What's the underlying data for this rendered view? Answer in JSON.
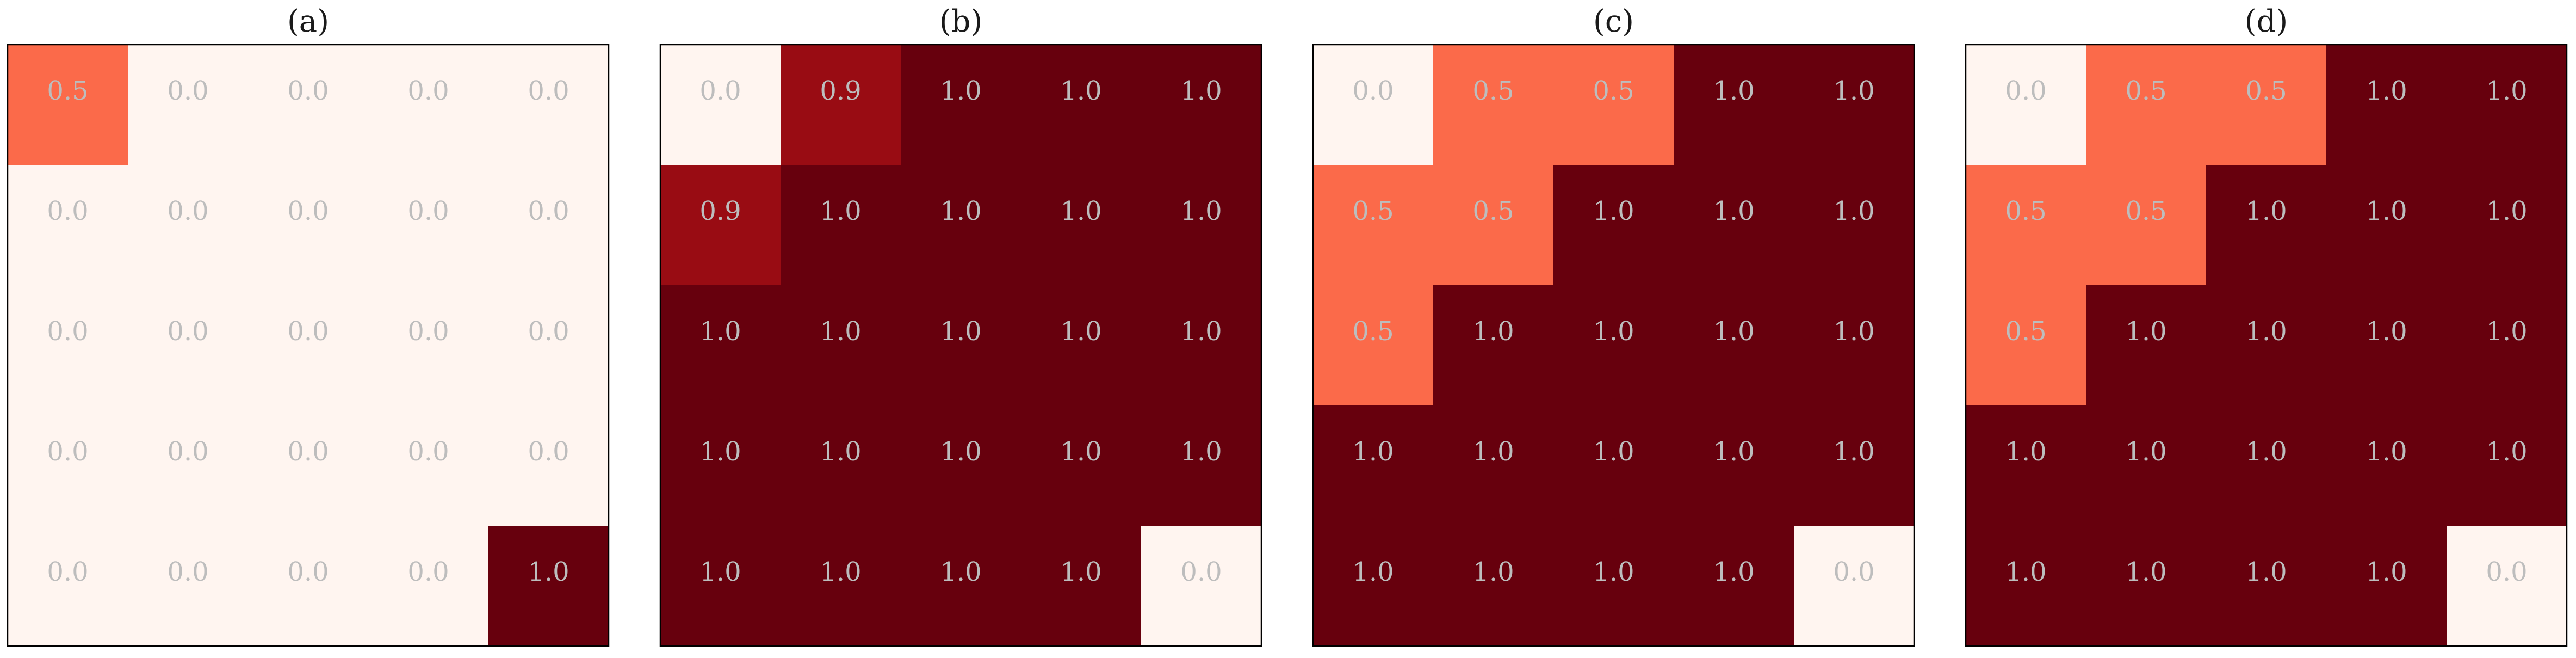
{
  "chart_data": [
    {
      "type": "heatmap",
      "title": "(a)",
      "rows": 5,
      "cols": 5,
      "color_scale": [
        "#fff5f0",
        "#67000d"
      ],
      "values": [
        [
          0.5,
          0.0,
          0.0,
          0.0,
          0.0
        ],
        [
          0.0,
          0.0,
          0.0,
          0.0,
          0.0
        ],
        [
          0.0,
          0.0,
          0.0,
          0.0,
          0.0
        ],
        [
          0.0,
          0.0,
          0.0,
          0.0,
          0.0
        ],
        [
          0.0,
          0.0,
          0.0,
          0.0,
          1.0
        ]
      ]
    },
    {
      "type": "heatmap",
      "title": "(b)",
      "rows": 5,
      "cols": 5,
      "color_scale": [
        "#fff5f0",
        "#67000d"
      ],
      "values": [
        [
          0.0,
          0.9,
          1.0,
          1.0,
          1.0
        ],
        [
          0.9,
          1.0,
          1.0,
          1.0,
          1.0
        ],
        [
          1.0,
          1.0,
          1.0,
          1.0,
          1.0
        ],
        [
          1.0,
          1.0,
          1.0,
          1.0,
          1.0
        ],
        [
          1.0,
          1.0,
          1.0,
          1.0,
          0.0
        ]
      ]
    },
    {
      "type": "heatmap",
      "title": "(c)",
      "rows": 5,
      "cols": 5,
      "color_scale": [
        "#fff5f0",
        "#67000d"
      ],
      "values": [
        [
          0.0,
          0.5,
          0.5,
          1.0,
          1.0
        ],
        [
          0.5,
          0.5,
          1.0,
          1.0,
          1.0
        ],
        [
          0.5,
          1.0,
          1.0,
          1.0,
          1.0
        ],
        [
          1.0,
          1.0,
          1.0,
          1.0,
          1.0
        ],
        [
          1.0,
          1.0,
          1.0,
          1.0,
          0.0
        ]
      ]
    },
    {
      "type": "heatmap",
      "title": "(d)",
      "rows": 5,
      "cols": 5,
      "color_scale": [
        "#fff5f0",
        "#67000d"
      ],
      "values": [
        [
          0.0,
          0.5,
          0.5,
          1.0,
          1.0
        ],
        [
          0.5,
          0.5,
          1.0,
          1.0,
          1.0
        ],
        [
          0.5,
          1.0,
          1.0,
          1.0,
          1.0
        ],
        [
          1.0,
          1.0,
          1.0,
          1.0,
          1.0
        ],
        [
          1.0,
          1.0,
          1.0,
          1.0,
          0.0
        ]
      ]
    }
  ]
}
